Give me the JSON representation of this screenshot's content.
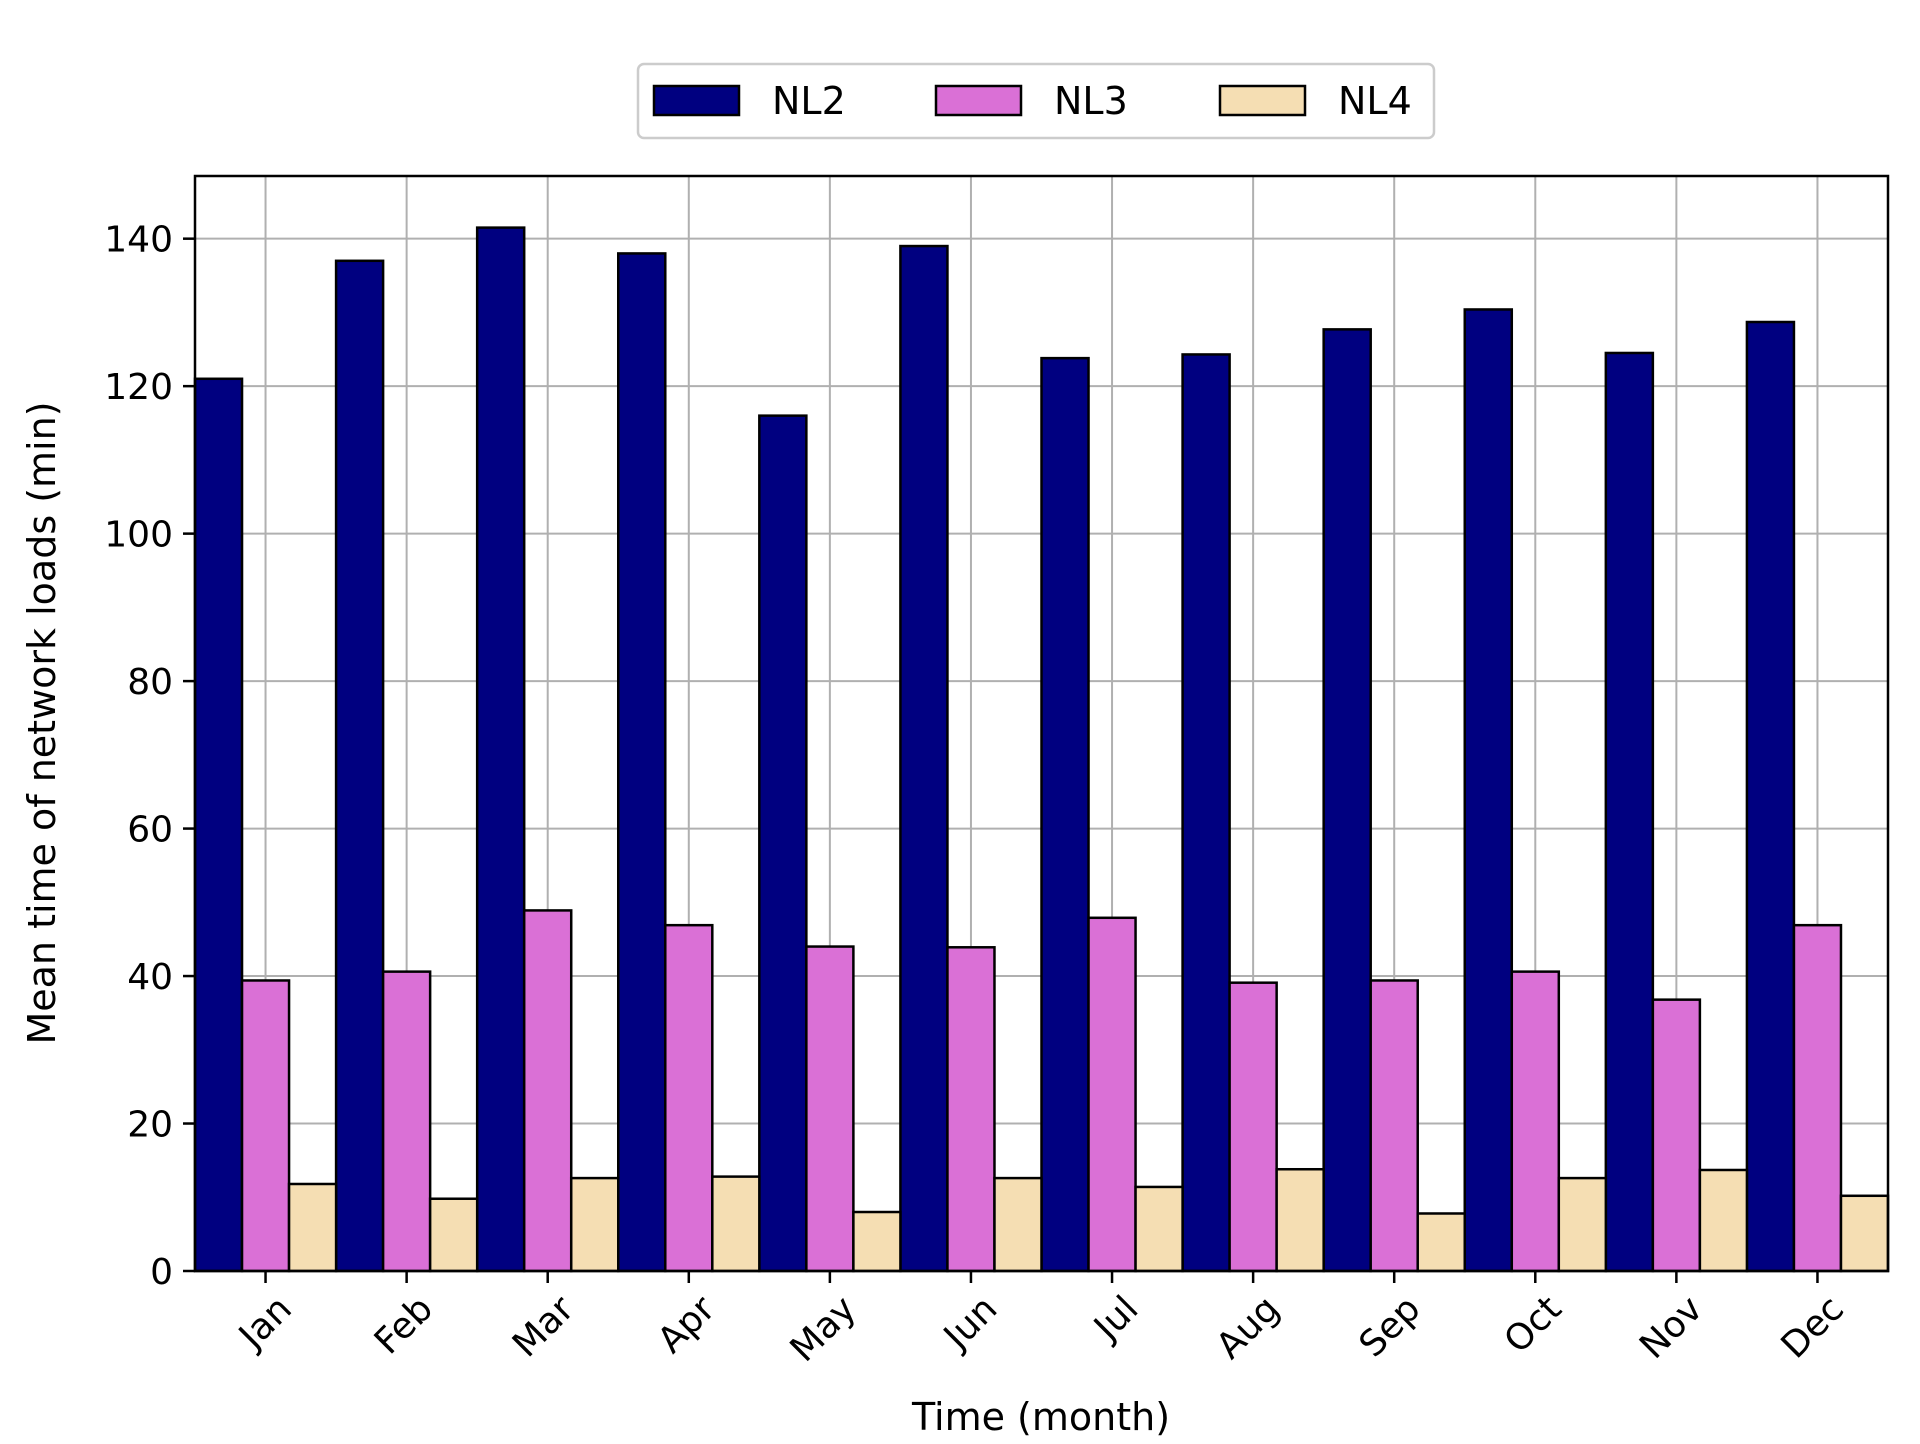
{
  "chart_data": {
    "type": "bar",
    "title": "",
    "xlabel": "Time (month)",
    "ylabel": "Mean time of network loads (min)",
    "categories": [
      "Jan",
      "Feb",
      "Mar",
      "Apr",
      "May",
      "Jun",
      "Jul",
      "Aug",
      "Sep",
      "Oct",
      "Nov",
      "Dec"
    ],
    "series": [
      {
        "name": "NL2",
        "color": "#000080",
        "values": [
          121,
          137,
          141.5,
          138,
          116,
          139,
          123.8,
          124.3,
          127.7,
          130.4,
          124.5,
          128.7
        ]
      },
      {
        "name": "NL3",
        "color": "#da70d6",
        "values": [
          39.4,
          40.6,
          48.9,
          46.9,
          44,
          43.9,
          47.9,
          39.1,
          39.4,
          40.6,
          36.8,
          46.9
        ]
      },
      {
        "name": "NL4",
        "color": "#f5deb3",
        "values": [
          11.8,
          9.8,
          12.6,
          12.8,
          8,
          12.6,
          11.4,
          13.8,
          7.8,
          12.6,
          13.7,
          10.2
        ]
      }
    ],
    "ylim": [
      0,
      148.5
    ],
    "yticks": [
      0,
      20,
      40,
      60,
      80,
      100,
      120,
      140
    ],
    "grid": true,
    "legend_position": "top-center"
  }
}
